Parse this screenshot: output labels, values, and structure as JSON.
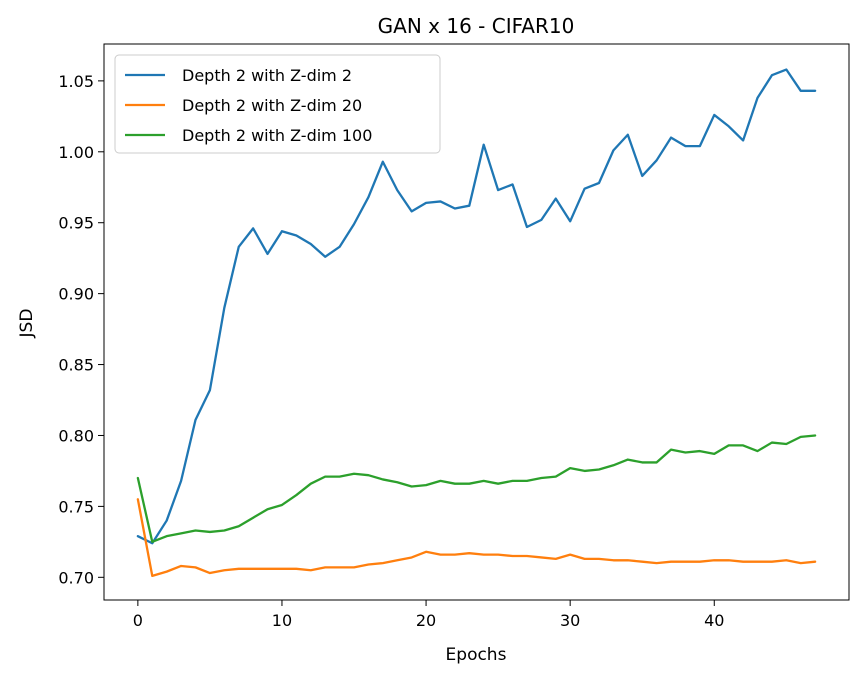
{
  "chart_data": {
    "type": "line",
    "title": "GAN x 16 - CIFAR10",
    "xlabel": "Epochs",
    "ylabel": "JSD",
    "xlim": [
      -2.35,
      49.35
    ],
    "ylim": [
      0.684,
      1.076
    ],
    "xticks": [
      0,
      10,
      20,
      30,
      40
    ],
    "yticks": [
      0.7,
      0.75,
      0.8,
      0.85,
      0.9,
      0.95,
      1.0,
      1.05
    ],
    "ytick_labels": [
      "0.70",
      "0.75",
      "0.80",
      "0.85",
      "0.90",
      "0.95",
      "1.00",
      "1.05"
    ],
    "grid": false,
    "legend_position": "top-left",
    "x": [
      0,
      1,
      2,
      3,
      4,
      5,
      6,
      7,
      8,
      9,
      10,
      11,
      12,
      13,
      14,
      15,
      16,
      17,
      18,
      19,
      20,
      21,
      22,
      23,
      24,
      25,
      26,
      27,
      28,
      29,
      30,
      31,
      32,
      33,
      34,
      35,
      36,
      37,
      38,
      39,
      40,
      41,
      42,
      43,
      44,
      45,
      46,
      47
    ],
    "series": [
      {
        "name": "Depth 2 with Z-dim 2",
        "color": "#1f77b4",
        "values": [
          0.729,
          0.724,
          0.74,
          0.768,
          0.811,
          0.832,
          0.89,
          0.933,
          0.946,
          0.928,
          0.944,
          0.941,
          0.935,
          0.926,
          0.933,
          0.949,
          0.968,
          0.993,
          0.973,
          0.958,
          0.964,
          0.965,
          0.96,
          0.962,
          1.005,
          0.973,
          0.977,
          0.947,
          0.952,
          0.967,
          0.951,
          0.974,
          0.978,
          1.001,
          1.012,
          0.983,
          0.994,
          1.01,
          1.004,
          1.004,
          1.026,
          1.018,
          1.008,
          1.038,
          1.054,
          1.058,
          1.043,
          1.043
        ]
      },
      {
        "name": "Depth 2 with Z-dim 20",
        "color": "#ff7f0e",
        "values": [
          0.755,
          0.701,
          0.704,
          0.708,
          0.707,
          0.703,
          0.705,
          0.706,
          0.706,
          0.706,
          0.706,
          0.706,
          0.705,
          0.707,
          0.707,
          0.707,
          0.709,
          0.71,
          0.712,
          0.714,
          0.718,
          0.716,
          0.716,
          0.717,
          0.716,
          0.716,
          0.715,
          0.715,
          0.714,
          0.713,
          0.716,
          0.713,
          0.713,
          0.712,
          0.712,
          0.711,
          0.71,
          0.711,
          0.711,
          0.711,
          0.712,
          0.712,
          0.711,
          0.711,
          0.711,
          0.712,
          0.71,
          0.711
        ]
      },
      {
        "name": "Depth 2 with Z-dim 100",
        "color": "#2ca02c",
        "values": [
          0.77,
          0.725,
          0.729,
          0.731,
          0.733,
          0.732,
          0.733,
          0.736,
          0.742,
          0.748,
          0.751,
          0.758,
          0.766,
          0.771,
          0.771,
          0.773,
          0.772,
          0.769,
          0.767,
          0.764,
          0.765,
          0.768,
          0.766,
          0.766,
          0.768,
          0.766,
          0.768,
          0.768,
          0.77,
          0.771,
          0.777,
          0.775,
          0.776,
          0.779,
          0.783,
          0.781,
          0.781,
          0.79,
          0.788,
          0.789,
          0.787,
          0.793,
          0.793,
          0.789,
          0.795,
          0.794,
          0.799,
          0.8
        ]
      }
    ]
  }
}
